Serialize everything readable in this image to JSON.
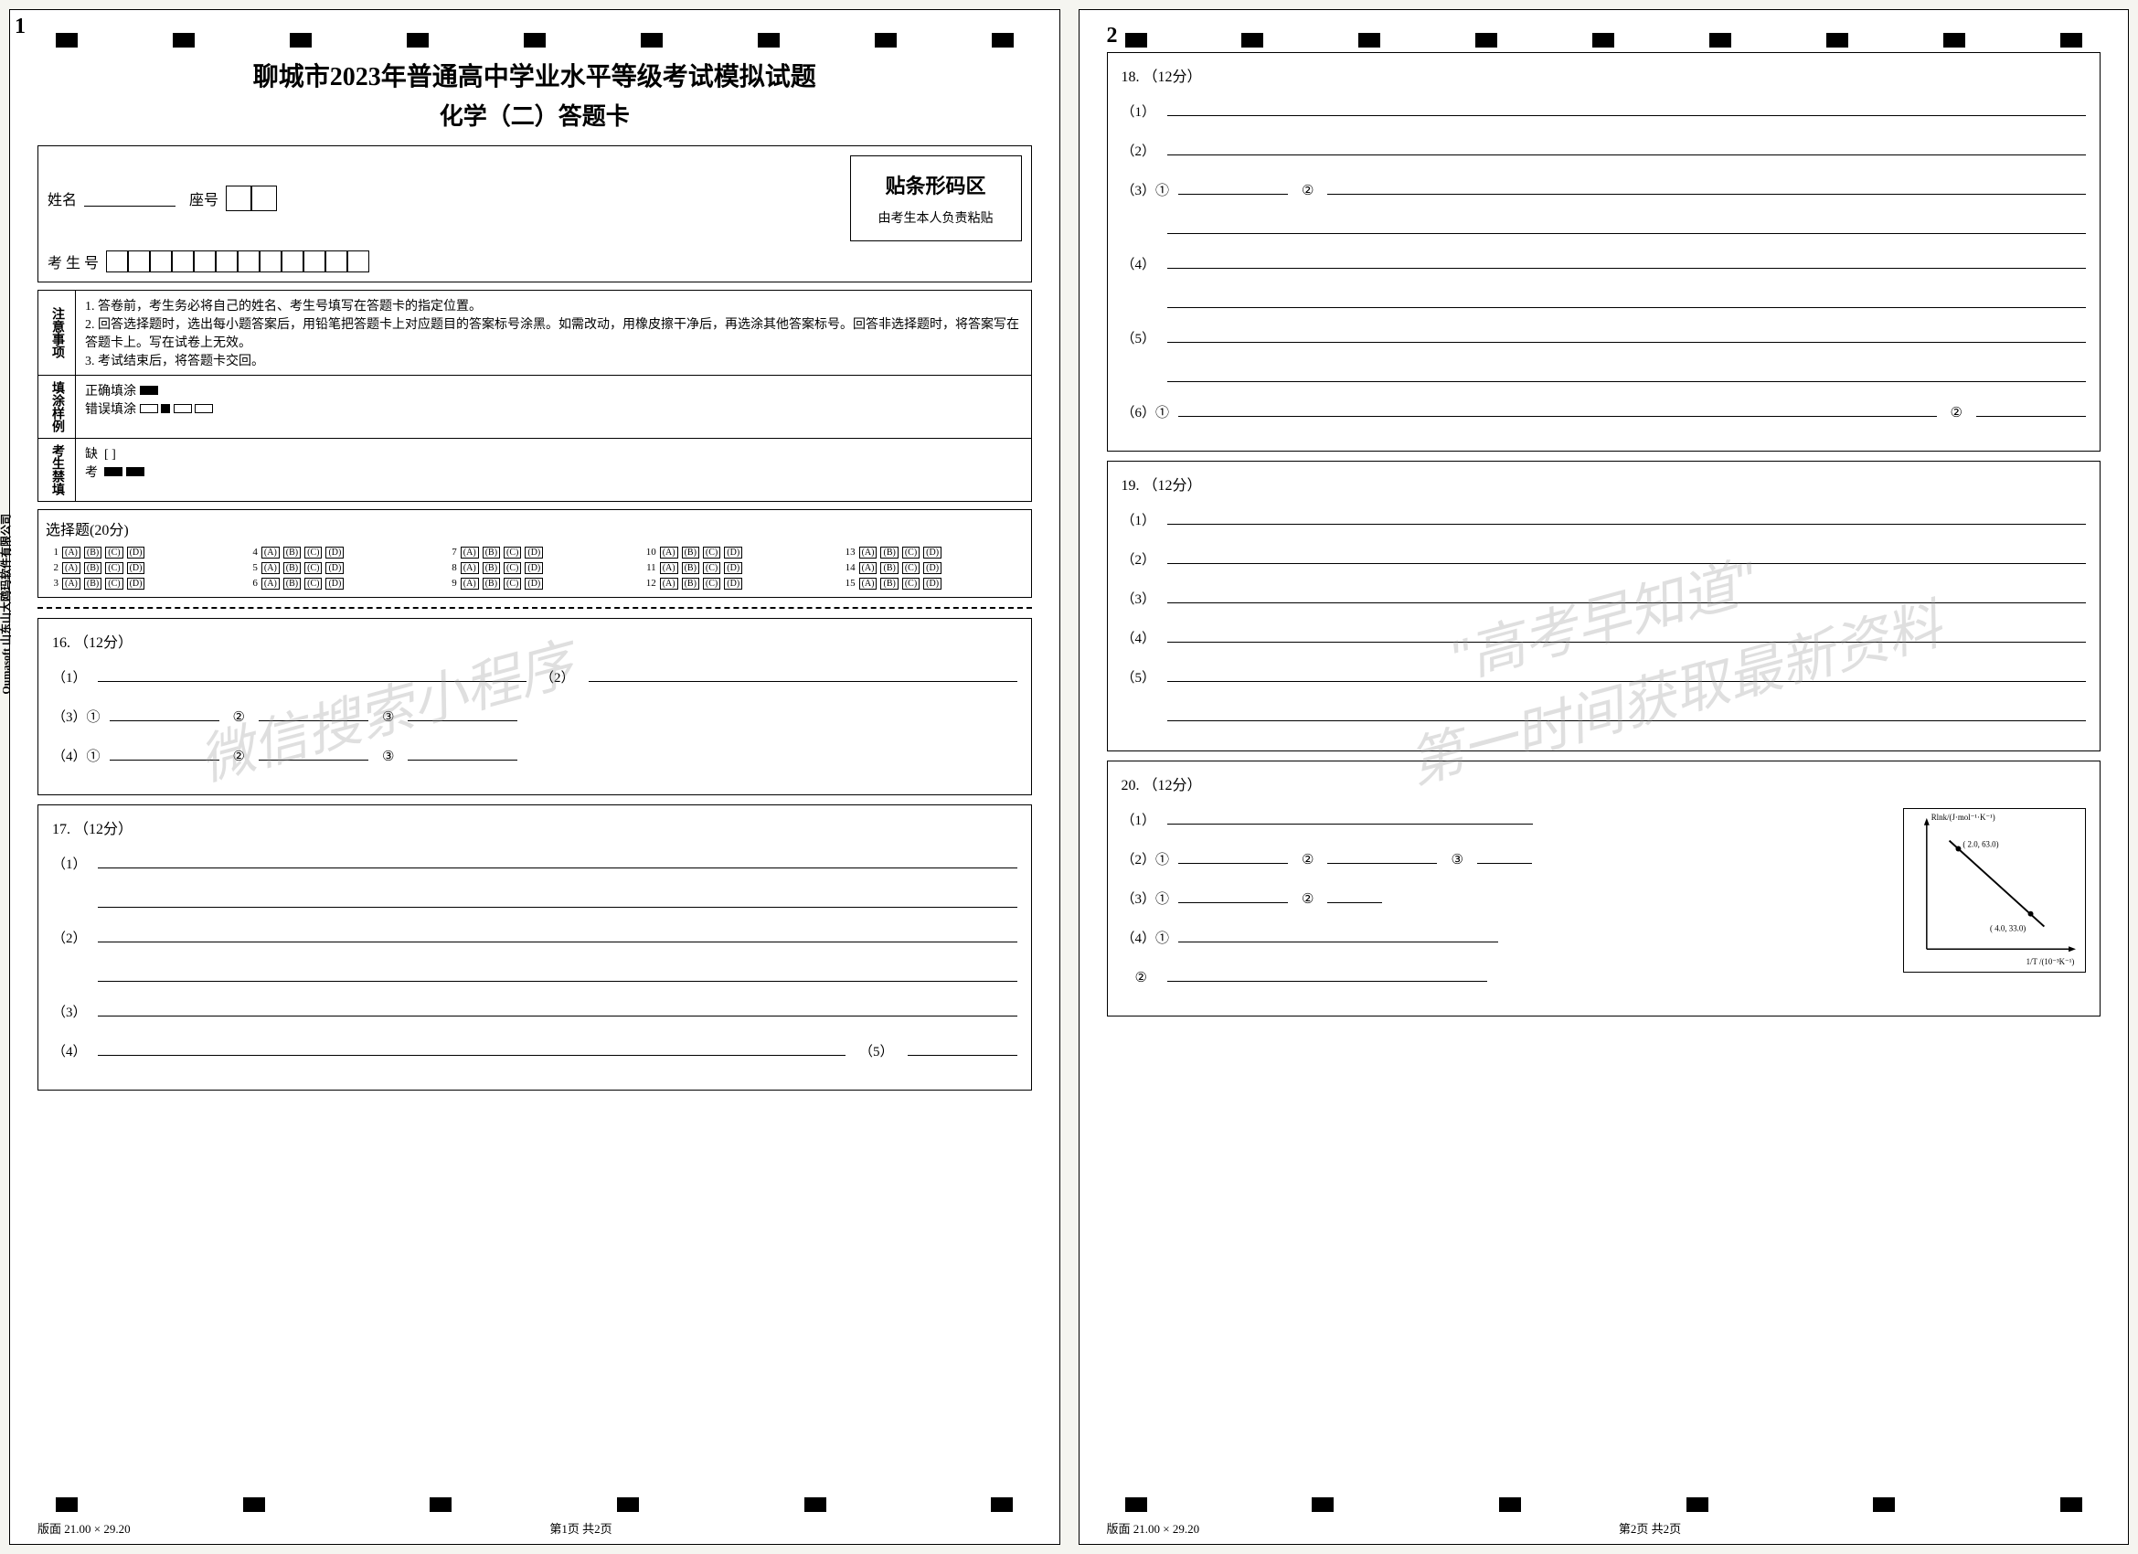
{
  "title": "聊城市2023年普通高中学业水平等级考试模拟试题",
  "subtitle": "化学（二）答题卡",
  "info": {
    "name_label": "姓名",
    "seat_label": "座号",
    "exam_id_label": "考 生 号",
    "barcode_title": "贴条形码区",
    "barcode_note": "由考生本人负责粘贴"
  },
  "instructions": {
    "label1": "注意事项",
    "item1": "1. 答卷前，考生务必将自己的姓名、考生号填写在答题卡的指定位置。",
    "item2": "2. 回答选择题时，选出每小题答案后，用铅笔把答题卡上对应题目的答案标号涂黑。如需改动，用橡皮擦干净后，再选涂其他答案标号。回答非选择题时，将答案写在答题卡上。写在试卷上无效。",
    "item3": "3. 考试结束后，将答题卡交回。",
    "fill_label": "填涂样例",
    "fill_correct": "正确填涂",
    "fill_wrong": "错误填涂",
    "student_label": "考生禁填",
    "absent": "缺",
    "exam": "考"
  },
  "mc": {
    "title": "选择题(20分)",
    "count": 15,
    "options": [
      "A",
      "B",
      "C",
      "D"
    ]
  },
  "questions": {
    "q16": {
      "header": "16. （12分）",
      "lines": [
        {
          "num": "（1）",
          "blanks": 1,
          "extra": "（2）",
          "blanks2": 1
        },
        {
          "num": "（3）①",
          "blanks": 1,
          "extra": "②",
          "blanks2": 1,
          "extra2": "③",
          "blanks3": 1
        },
        {
          "num": "（4）①",
          "blanks": 1,
          "extra": "②",
          "blanks2": 1,
          "extra2": "③",
          "blanks3": 1
        }
      ]
    },
    "q17": {
      "header": "17. （12分）",
      "lines": [
        {
          "num": "（1）",
          "blanks": 1
        },
        {
          "num": "",
          "blanks": 1
        },
        {
          "num": "（2）",
          "blanks": 1
        },
        {
          "num": "",
          "blanks": 1
        },
        {
          "num": "（3）",
          "blanks": 1
        },
        {
          "num": "（4）",
          "blanks": 1,
          "extra": "（5）",
          "blanks2": 1
        }
      ]
    },
    "q18": {
      "header": "18. （12分）",
      "lines": [
        {
          "num": "（1）",
          "blanks": 1
        },
        {
          "num": "（2）",
          "blanks": 1
        },
        {
          "num": "（3）①",
          "blanks": 1,
          "extra": "②",
          "blanks2": 1
        },
        {
          "num": "",
          "blanks": 1
        },
        {
          "num": "（4）",
          "blanks": 1
        },
        {
          "num": "",
          "blanks": 1
        },
        {
          "num": "（5）",
          "blanks": 1
        },
        {
          "num": "",
          "blanks": 1
        },
        {
          "num": "（6）①",
          "blanks": 1,
          "extra": "②",
          "blanks2": 1
        }
      ]
    },
    "q19": {
      "header": "19. （12分）",
      "lines": [
        {
          "num": "（1）",
          "blanks": 1
        },
        {
          "num": "（2）",
          "blanks": 1
        },
        {
          "num": "（3）",
          "blanks": 1
        },
        {
          "num": "（4）",
          "blanks": 1
        },
        {
          "num": "（5）",
          "blanks": 1
        },
        {
          "num": "",
          "blanks": 1
        }
      ]
    },
    "q20": {
      "header": "20. （12分）",
      "lines": [
        {
          "num": "（1）",
          "blanks": 1
        },
        {
          "num": "（2）①",
          "blanks": 1,
          "extra": "②",
          "blanks2": 1,
          "extra2": "③",
          "blanks3": 1
        },
        {
          "num": "（3）①",
          "blanks": 1,
          "extra": "②",
          "blanks2": 1
        },
        {
          "num": "（4）①",
          "blanks": 1
        },
        {
          "num": "     ②",
          "blanks": 1
        }
      ]
    }
  },
  "chart": {
    "ylabel": "Rlnk/(J·mol⁻¹·K⁻¹)",
    "xlabel": "1/T /(10⁻³K⁻¹)",
    "point1": "( 2.0, 63.0)",
    "point2": "( 4.0, 33.0)",
    "xlim": [
      1.5,
      5.0
    ],
    "ylim": [
      20,
      70
    ],
    "line_color": "#000000",
    "point_color": "#000000"
  },
  "footer": {
    "version": "版面 21.00 × 29.20",
    "page1": "第1页 共2页",
    "page2": "第2页 共2页"
  },
  "side_company": "Oumasoft 山东山大鸥玛软件有限公司",
  "watermark": {
    "line1": "微信搜索小程序",
    "line2": "\"高考早知道\"",
    "line3": "第一时间获取最新资料"
  }
}
